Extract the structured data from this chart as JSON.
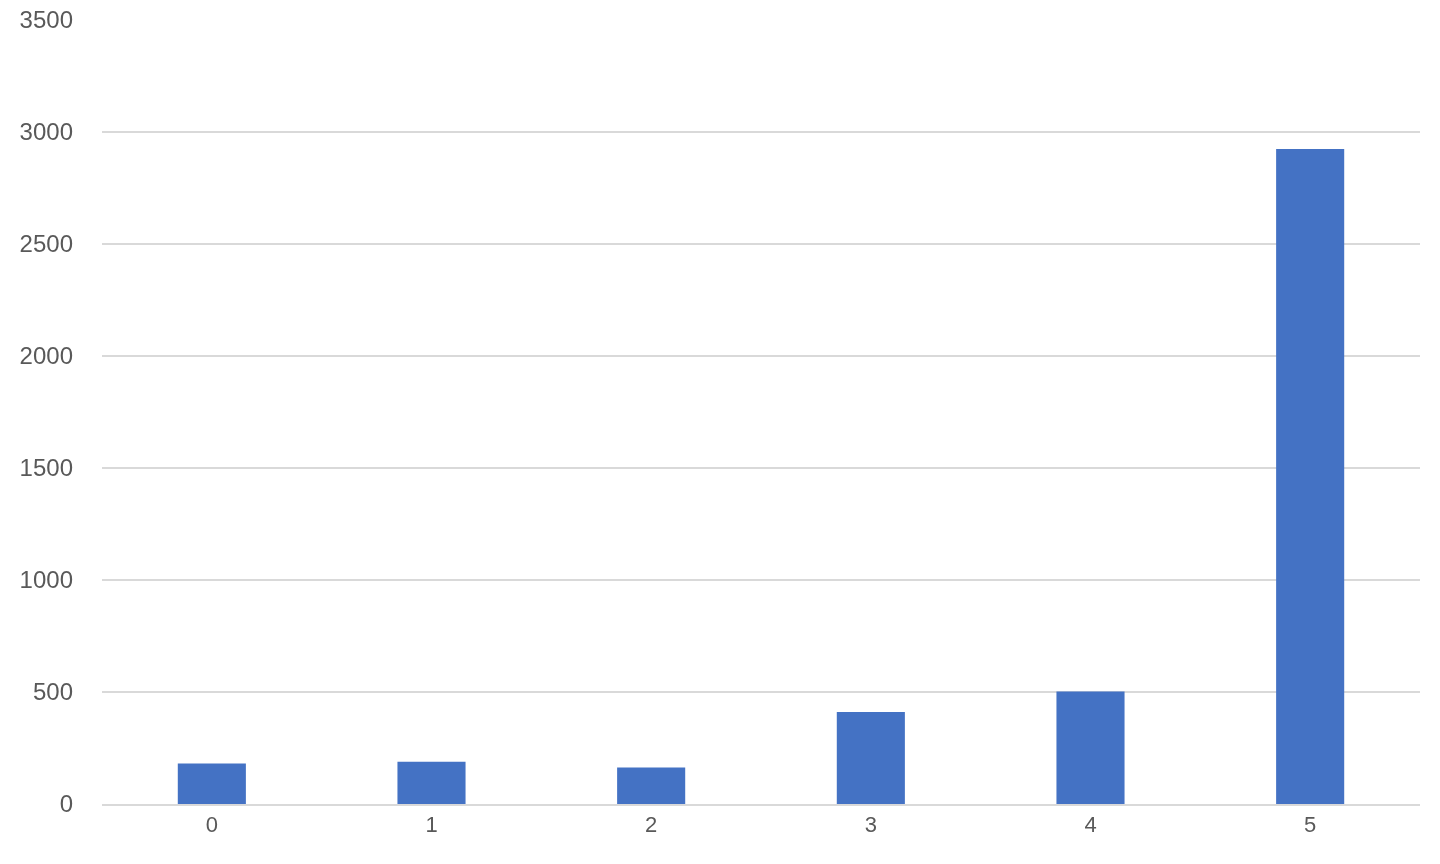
{
  "chart_data": {
    "type": "bar",
    "categories": [
      "0",
      "1",
      "2",
      "3",
      "4",
      "5"
    ],
    "values": [
      181,
      189,
      163,
      411,
      502,
      2924
    ],
    "color": "#4472c4",
    "ylim": [
      0,
      3500
    ],
    "yticks": [
      0,
      500,
      1000,
      1500,
      2000,
      2500,
      3000,
      3500
    ],
    "grid": "y",
    "legend": false
  }
}
